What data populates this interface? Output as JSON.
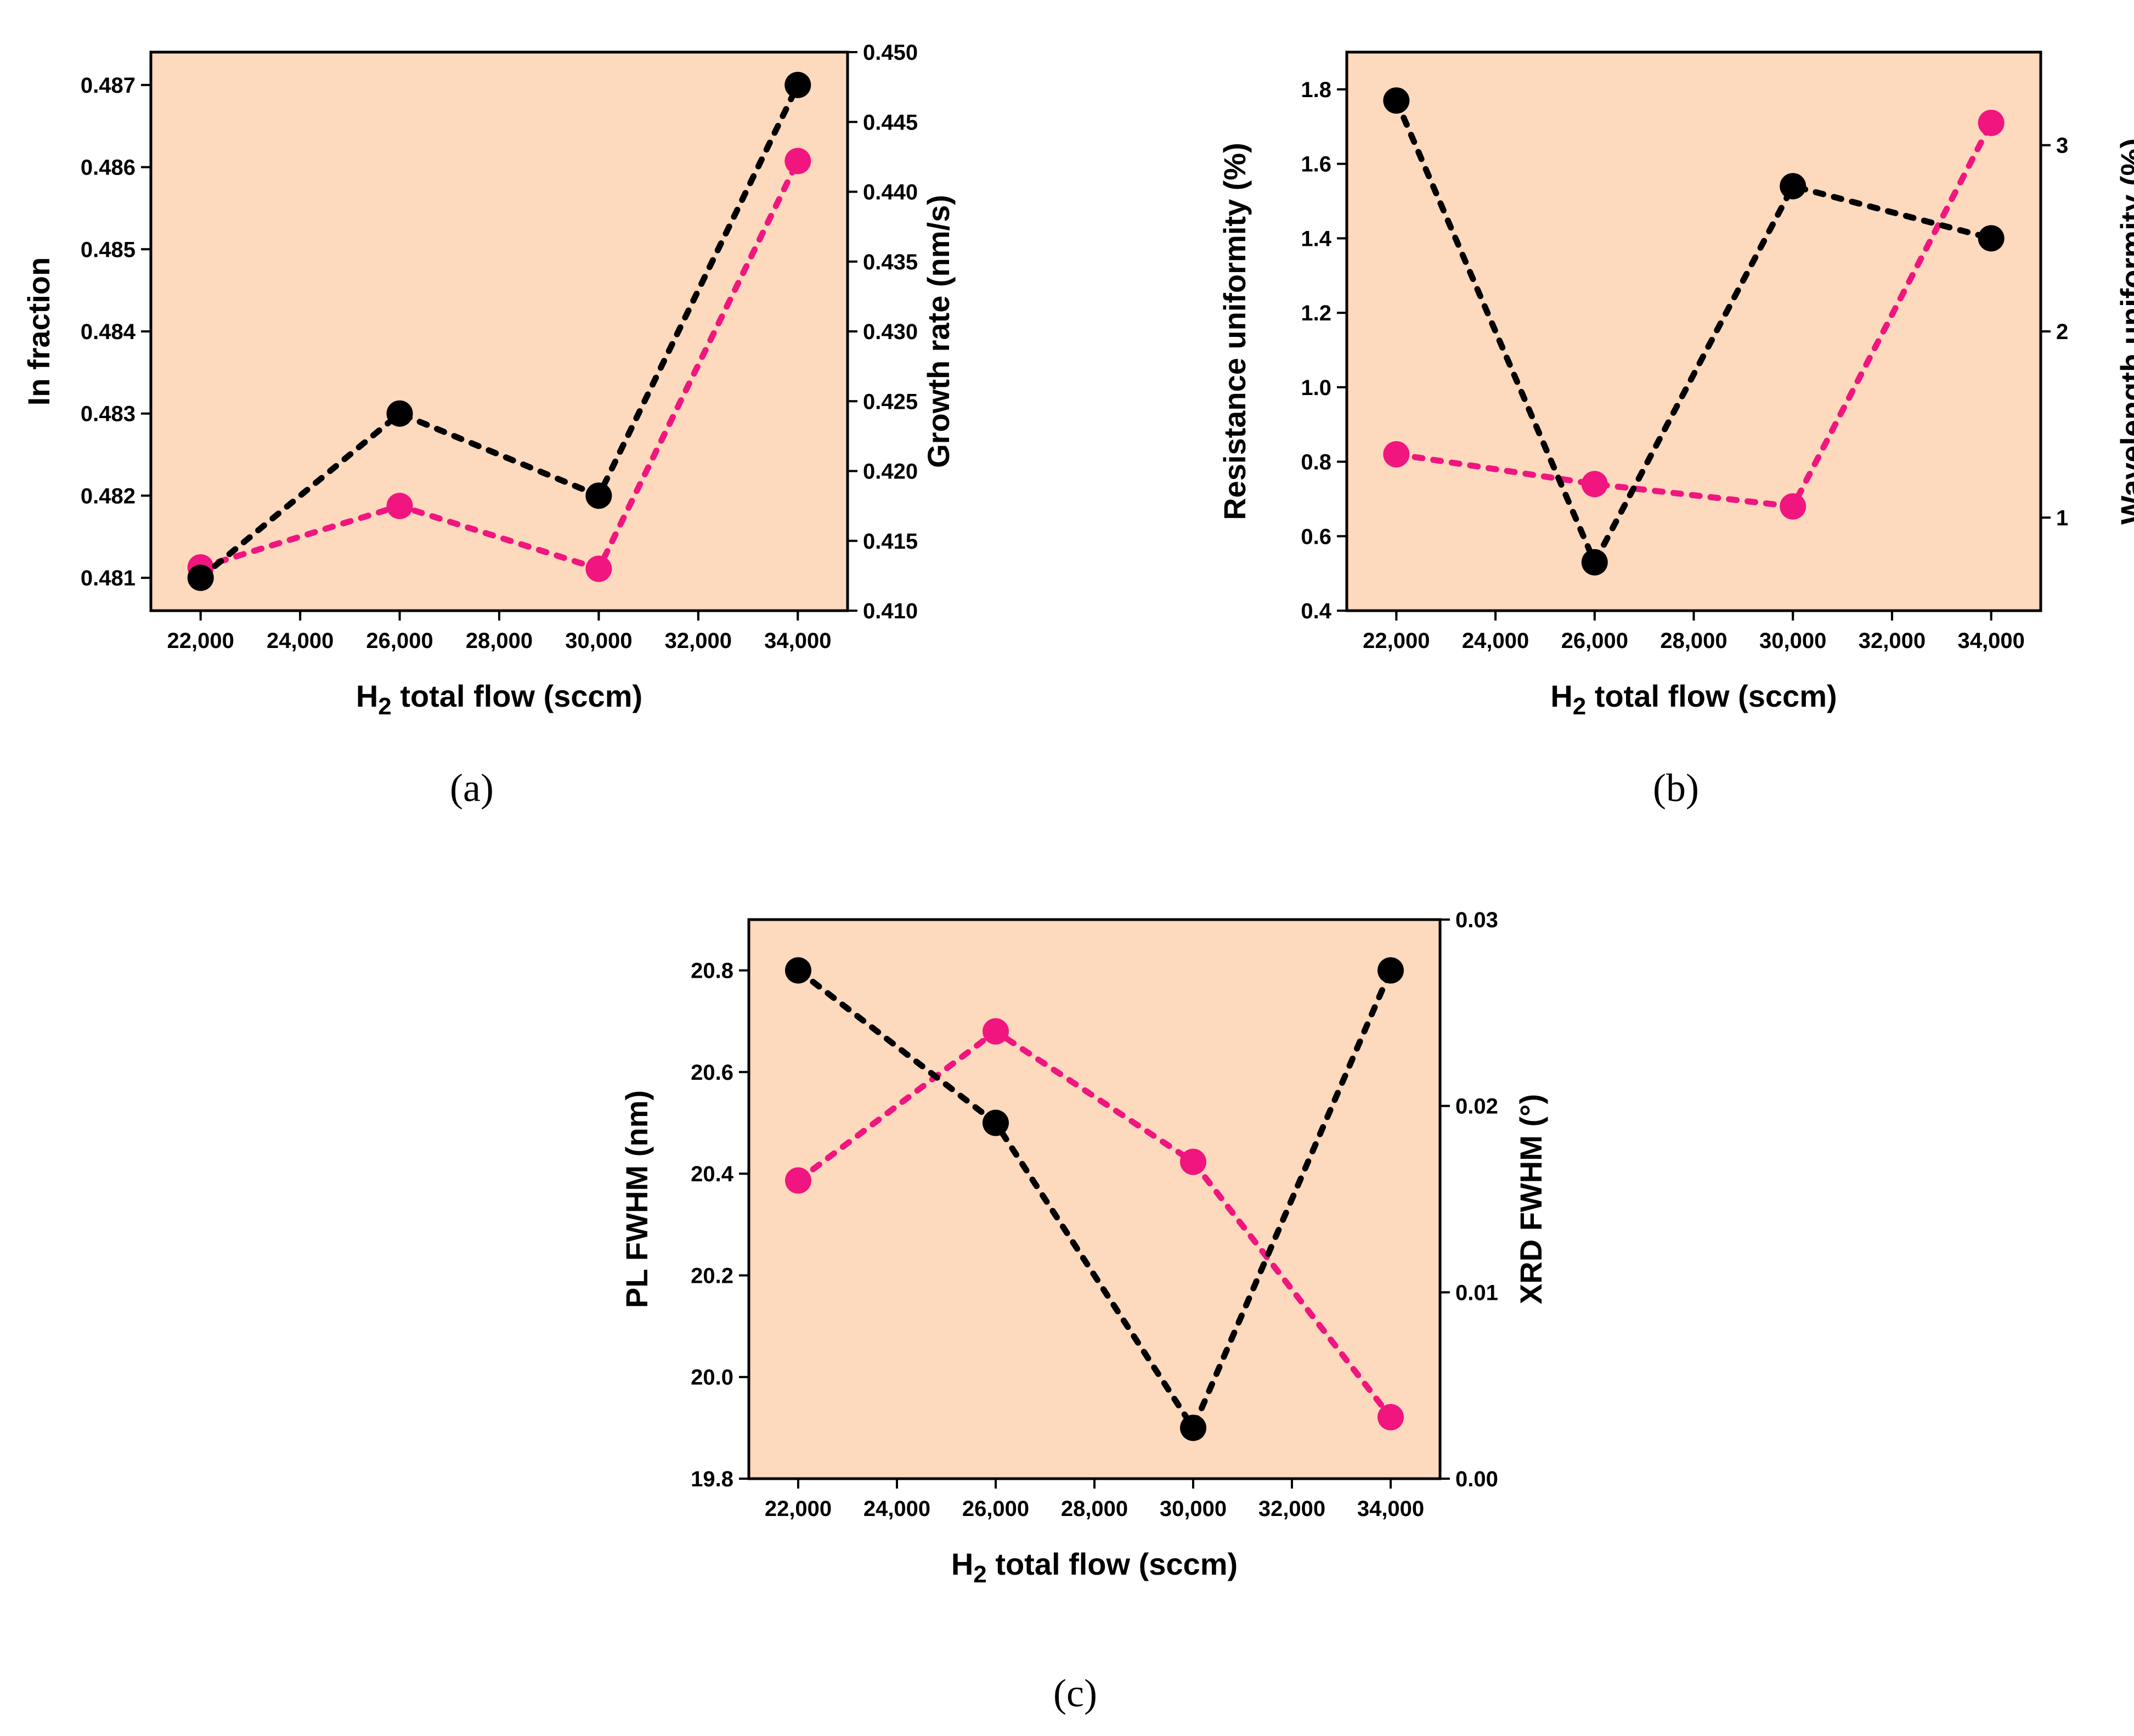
{
  "colors": {
    "plot_background": "#FDD9BD",
    "series_black": "#000000",
    "series_pink": "#F0157F"
  },
  "chart_data": [
    {
      "type": "scatter",
      "panel_label": "(a)",
      "xlabel": {
        "main": "H",
        "sub": "2",
        "rest": " total flow (sccm)"
      },
      "x_ticks": [
        "22,000",
        "24,000",
        "26,000",
        "28,000",
        "30,000",
        "32,000",
        "34,000"
      ],
      "x": [
        22000,
        26000,
        30000,
        34000
      ],
      "xlim": [
        21000,
        35000
      ],
      "ylabel_left": "In fraction",
      "ylim_left": [
        0.4806,
        0.4874
      ],
      "yticks_left": [
        "0.481",
        "0.482",
        "0.483",
        "0.484",
        "0.485",
        "0.486",
        "0.487"
      ],
      "ylabel_right": "Growth rate (nm/s)",
      "ylim_right": [
        0.41,
        0.45
      ],
      "yticks_right": [
        "0.410",
        "0.415",
        "0.420",
        "0.425",
        "0.430",
        "0.435",
        "0.440",
        "0.445",
        "0.450"
      ],
      "series": [
        {
          "name": "In fraction",
          "axis": "left",
          "color": "#000000",
          "values": [
            0.481,
            0.483,
            0.482,
            0.487
          ]
        },
        {
          "name": "Growth rate",
          "axis": "right",
          "color": "#F0157F",
          "values": [
            0.4131,
            0.4175,
            0.413,
            0.4422
          ]
        }
      ]
    },
    {
      "type": "scatter",
      "panel_label": "(b)",
      "xlabel": {
        "main": "H",
        "sub": "2",
        "rest": " total flow (sccm)"
      },
      "x_ticks": [
        "22,000",
        "24,000",
        "26,000",
        "28,000",
        "30,000",
        "32,000",
        "34,000"
      ],
      "x": [
        22000,
        26000,
        30000,
        34000
      ],
      "xlim": [
        21000,
        35000
      ],
      "ylabel_left": "Resistance uniformity (%)",
      "ylim_left": [
        0.4,
        1.9
      ],
      "yticks_left": [
        "0.4",
        "0.6",
        "0.8",
        "1.0",
        "1.2",
        "1.4",
        "1.6",
        "1.8"
      ],
      "ylabel_right": "Wavelength uniformity (%)",
      "ylim_right": [
        0.5,
        3.5
      ],
      "yticks_right": [
        "1",
        "2",
        "3"
      ],
      "series": [
        {
          "name": "Resistance uniformity",
          "axis": "left",
          "color": "#000000",
          "values": [
            1.77,
            0.53,
            1.54,
            1.4
          ]
        },
        {
          "name": "Wavelength uniformity",
          "axis": "right",
          "color": "#F0157F",
          "values": [
            1.34,
            1.18,
            1.06,
            3.12
          ]
        }
      ]
    },
    {
      "type": "scatter",
      "panel_label": "(c)",
      "xlabel": {
        "main": "H",
        "sub": "2",
        "rest": " total flow (sccm)"
      },
      "x_ticks": [
        "22,000",
        "24,000",
        "26,000",
        "28,000",
        "30,000",
        "32,000",
        "34,000"
      ],
      "x": [
        22000,
        26000,
        30000,
        34000
      ],
      "xlim": [
        21000,
        35000
      ],
      "ylabel_left": "PL FWHM (nm)",
      "ylim_left": [
        19.8,
        20.9
      ],
      "yticks_left": [
        "19.8",
        "20.0",
        "20.2",
        "20.4",
        "20.6",
        "20.8"
      ],
      "ylabel_right": "XRD FWHM (°)",
      "ylim_right": [
        0.0,
        0.03
      ],
      "yticks_right": [
        "0.00",
        "0.01",
        "0.02",
        "0.03"
      ],
      "series": [
        {
          "name": "PL FWHM",
          "axis": "left",
          "color": "#000000",
          "values": [
            20.8,
            20.5,
            19.9,
            20.8
          ]
        },
        {
          "name": "XRD FWHM",
          "axis": "right",
          "color": "#F0157F",
          "values": [
            0.016,
            0.024,
            0.017,
            0.0033
          ]
        }
      ]
    }
  ]
}
